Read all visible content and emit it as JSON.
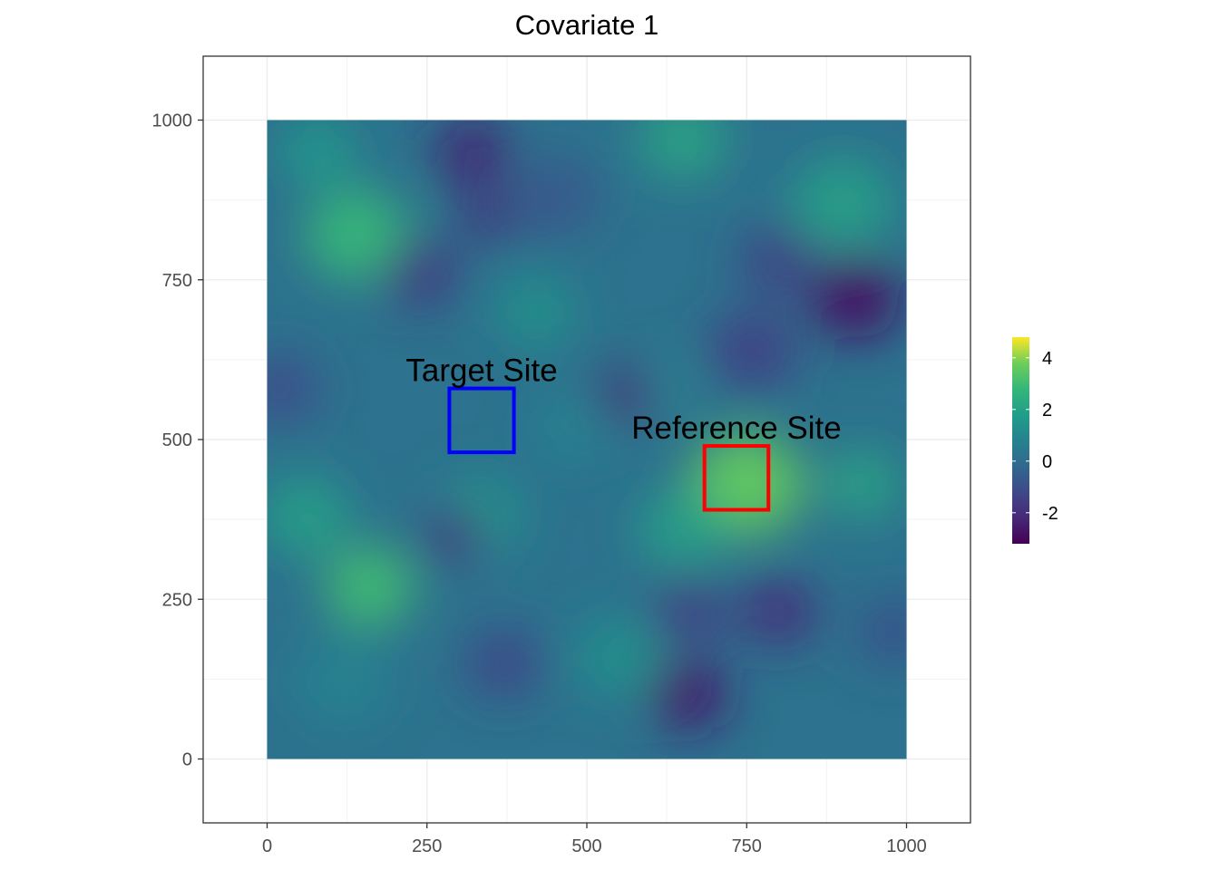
{
  "chart_data": {
    "type": "heatmap",
    "title": "Covariate 1",
    "xlabel": "",
    "ylabel": "",
    "xlim": [
      -100,
      1100
    ],
    "ylim": [
      -100,
      1100
    ],
    "raster_extent": {
      "x": [
        0,
        1000
      ],
      "y": [
        0,
        1000
      ]
    },
    "x_ticks": [
      0,
      250,
      500,
      750,
      1000
    ],
    "y_ticks": [
      0,
      250,
      500,
      750,
      1000
    ],
    "x_tick_labels": [
      "0",
      "250",
      "500",
      "750",
      "1000"
    ],
    "y_tick_labels": [
      "0",
      "250",
      "500",
      "750",
      "1000"
    ],
    "grid": true,
    "colorscale": "viridis",
    "color_range": [
      -3.2,
      4.8
    ],
    "legend": {
      "position": "right",
      "ticks": [
        4,
        2,
        0,
        -2
      ],
      "tick_labels": [
        "4",
        "2",
        "0",
        "-2"
      ]
    },
    "annotations": [
      {
        "label": "Target Site",
        "color": "#0000ff",
        "xmin": 285,
        "xmax": 386,
        "ymin": 480,
        "ymax": 580
      },
      {
        "label": "Reference Site",
        "color": "#ff0000",
        "xmin": 684,
        "xmax": 784,
        "ymin": 390,
        "ymax": 490
      }
    ],
    "hotspots": [
      {
        "x": 750,
        "y": 430,
        "value": 3.6,
        "r": 90
      },
      {
        "x": 650,
        "y": 360,
        "value": 2.0,
        "r": 70
      },
      {
        "x": 930,
        "y": 430,
        "value": 2.2,
        "r": 60
      },
      {
        "x": 160,
        "y": 270,
        "value": 3.0,
        "r": 70
      },
      {
        "x": 140,
        "y": 820,
        "value": 2.8,
        "r": 80
      },
      {
        "x": 80,
        "y": 950,
        "value": 1.8,
        "r": 60
      },
      {
        "x": 60,
        "y": 380,
        "value": 2.0,
        "r": 70
      },
      {
        "x": 650,
        "y": 970,
        "value": 2.2,
        "r": 70
      },
      {
        "x": 900,
        "y": 870,
        "value": 2.0,
        "r": 80
      },
      {
        "x": 420,
        "y": 700,
        "value": 1.6,
        "r": 60
      },
      {
        "x": 480,
        "y": 520,
        "value": 0.8,
        "r": 70
      },
      {
        "x": 550,
        "y": 160,
        "value": 1.4,
        "r": 70
      },
      {
        "x": 330,
        "y": 380,
        "value": 1.6,
        "r": 70
      },
      {
        "x": 620,
        "y": 580,
        "value": 1.0,
        "r": 50
      },
      {
        "x": 320,
        "y": 950,
        "value": -2.4,
        "r": 60
      },
      {
        "x": 345,
        "y": 850,
        "value": -2.0,
        "r": 45
      },
      {
        "x": 240,
        "y": 760,
        "value": -1.8,
        "r": 60
      },
      {
        "x": 920,
        "y": 720,
        "value": -2.8,
        "r": 70
      },
      {
        "x": 760,
        "y": 640,
        "value": -1.6,
        "r": 70
      },
      {
        "x": 560,
        "y": 570,
        "value": -2.0,
        "r": 50
      },
      {
        "x": 800,
        "y": 780,
        "value": -1.6,
        "r": 60
      },
      {
        "x": 660,
        "y": 100,
        "value": -2.6,
        "r": 60
      },
      {
        "x": 800,
        "y": 230,
        "value": -2.2,
        "r": 60
      },
      {
        "x": 660,
        "y": 230,
        "value": -1.6,
        "r": 60
      },
      {
        "x": 290,
        "y": 350,
        "value": -1.8,
        "r": 50
      },
      {
        "x": 370,
        "y": 150,
        "value": -1.4,
        "r": 60
      },
      {
        "x": 20,
        "y": 580,
        "value": -1.2,
        "r": 60
      },
      {
        "x": 980,
        "y": 200,
        "value": -1.0,
        "r": 60
      },
      {
        "x": 450,
        "y": 880,
        "value": -0.8,
        "r": 70
      },
      {
        "x": 120,
        "y": 120,
        "value": 0.8,
        "r": 80
      }
    ]
  }
}
